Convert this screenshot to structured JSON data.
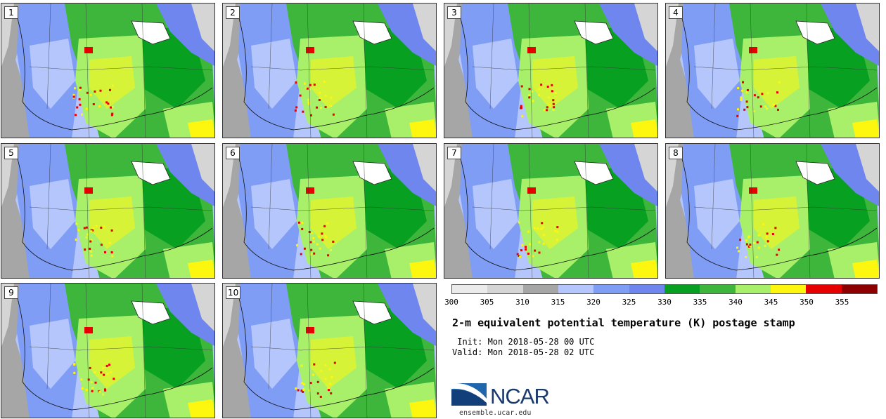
{
  "panels": [
    {
      "label": "1"
    },
    {
      "label": "2"
    },
    {
      "label": "3"
    },
    {
      "label": "4"
    },
    {
      "label": "5"
    },
    {
      "label": "6"
    },
    {
      "label": "7"
    },
    {
      "label": "8"
    },
    {
      "label": "9"
    },
    {
      "label": "10"
    }
  ],
  "colorbar": {
    "colors": [
      "#ebebeb",
      "#d5d5d5",
      "#a6a6a6",
      "#b4c6fb",
      "#7f9df5",
      "#6f86ee",
      "#08a021",
      "#3db63b",
      "#a9f06a",
      "#fdf60e",
      "#e60000",
      "#8e0000"
    ],
    "ticks": [
      "300",
      "305",
      "310",
      "315",
      "320",
      "325",
      "330",
      "335",
      "340",
      "345",
      "350",
      "355"
    ]
  },
  "title": "2-m equivalent potential temperature (K) postage stamp",
  "init": " Init: Mon 2018-05-28 00 UTC",
  "valid": "Valid: Mon 2018-05-28 02 UTC",
  "logo": {
    "text": "NCAR",
    "site": "ensemble.ucar.edu",
    "brand_color": "#1a3a6e"
  }
}
